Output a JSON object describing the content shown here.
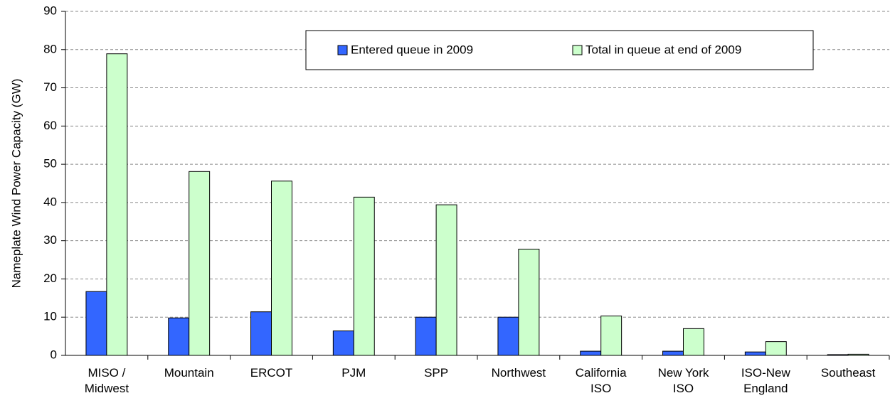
{
  "chart_data": {
    "type": "bar",
    "y_label": "Nameplate Wind Power Capacity (GW)",
    "categories": [
      "MISO / Midwest",
      "Mountain",
      "ERCOT",
      "PJM",
      "SPP",
      "Northwest",
      "California ISO",
      "New York ISO",
      "ISO-New England",
      "Southeast"
    ],
    "series": [
      {
        "name": "Entered queue in 2009",
        "color": "#3366ff",
        "values": [
          16.7,
          9.8,
          11.4,
          6.4,
          10.0,
          10.0,
          1.1,
          1.1,
          0.9,
          0.2
        ]
      },
      {
        "name": "Total in queue at end of 2009",
        "color": "#ccffcc",
        "values": [
          78.9,
          48.1,
          45.6,
          41.4,
          39.4,
          27.8,
          10.3,
          7.0,
          3.6,
          0.3
        ]
      }
    ],
    "ylim": [
      0,
      90
    ],
    "yticks": [
      0,
      10,
      20,
      30,
      40,
      50,
      60,
      70,
      80,
      90
    ],
    "grid": true,
    "legend": "top"
  }
}
